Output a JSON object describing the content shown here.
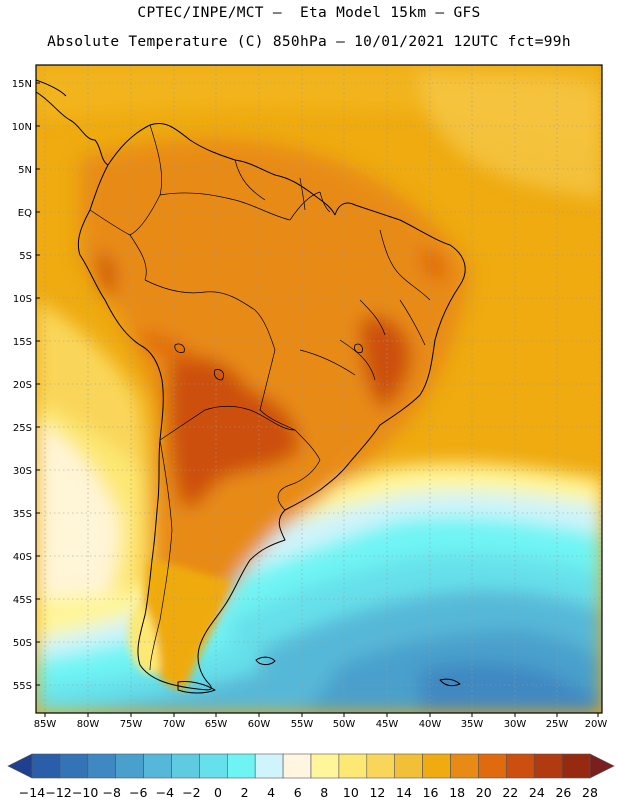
{
  "header": {
    "line1": "CPTEC/INPE/MCT –  Eta Model 15km – GFS",
    "line2": "Absolute Temperature (C) 850hPa – 10/01/2021 12UTC fct=99h"
  },
  "map": {
    "lat_labels": [
      "15N",
      "10N",
      "5N",
      "EQ",
      "5S",
      "10S",
      "15S",
      "20S",
      "25S",
      "30S",
      "35S",
      "40S",
      "45S",
      "50S",
      "55S"
    ],
    "lon_labels": [
      "85W",
      "80W",
      "75W",
      "70W",
      "65W",
      "60W",
      "55W",
      "50W",
      "45W",
      "40W",
      "35W",
      "30W",
      "25W",
      "20W"
    ],
    "lon_range": [
      -85,
      -20
    ],
    "lat_range": [
      -58,
      16
    ],
    "field": "temperature_850hPa",
    "grid": true
  },
  "colorbar": {
    "labels": [
      "-14",
      "-12",
      "-10",
      "-8",
      "-6",
      "-4",
      "-2",
      "0",
      "2",
      "4",
      "6",
      "8",
      "10",
      "12",
      "14",
      "16",
      "18",
      "20",
      "22",
      "24",
      "26",
      "28"
    ],
    "colors": [
      "#1f3f8f",
      "#2a5ea8",
      "#3474b6",
      "#3f88c2",
      "#4aa0cc",
      "#56b8d8",
      "#5fcbe0",
      "#66e0ea",
      "#6ff4f4",
      "#cff4fb",
      "#fff6e2",
      "#fff59a",
      "#fde873",
      "#f9d65a",
      "#f2c036",
      "#efab10",
      "#e88b14",
      "#e06a0e",
      "#cc4f10",
      "#b23a10",
      "#962a10",
      "#7a1f1f"
    ]
  }
}
